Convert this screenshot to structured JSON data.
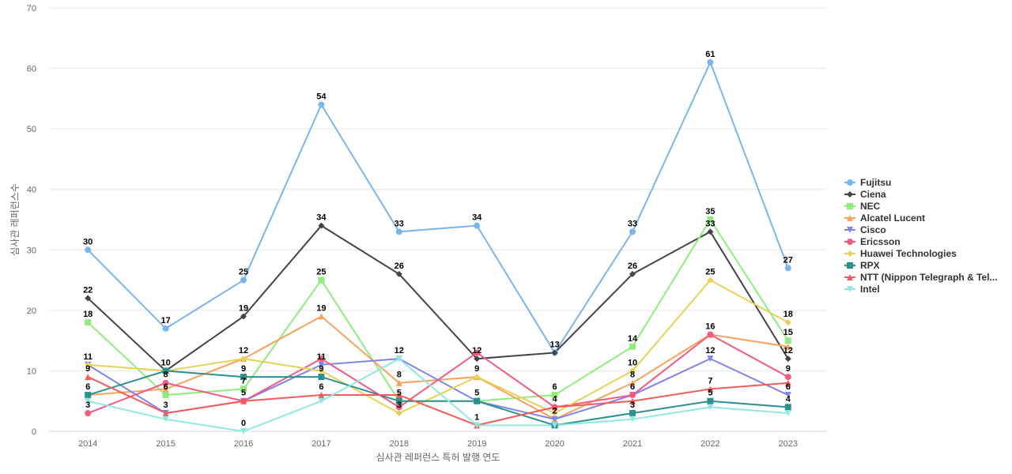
{
  "chart_data": {
    "type": "line",
    "title": "",
    "xlabel": "심사관 레퍼런스 특허 발행 연도",
    "ylabel": "심사관 레퍼런스수",
    "x": [
      "2014",
      "2015",
      "2016",
      "2017",
      "2018",
      "2019",
      "2020",
      "2021",
      "2022",
      "2023"
    ],
    "ylim": [
      0,
      70
    ],
    "yticks": [
      0,
      10,
      20,
      30,
      40,
      50,
      60,
      70
    ],
    "grid": true,
    "legend_position": "right",
    "series": [
      {
        "name": "Fujitsu",
        "color": "#7cb5ec",
        "marker": "circle",
        "values": [
          30,
          17,
          25,
          54,
          33,
          34,
          13,
          33,
          61,
          27
        ]
      },
      {
        "name": "Ciena",
        "color": "#434348",
        "marker": "diamond",
        "values": [
          22,
          10,
          19,
          34,
          26,
          12,
          13,
          26,
          33,
          12
        ]
      },
      {
        "name": "NEC",
        "color": "#90ed7d",
        "marker": "square",
        "values": [
          18,
          6,
          7,
          25,
          5,
          5,
          6,
          14,
          35,
          15
        ]
      },
      {
        "name": "Alcatel Lucent",
        "color": "#f7a35c",
        "marker": "triangle",
        "values": [
          6,
          7,
          12,
          19,
          8,
          9,
          2,
          8,
          16,
          14
        ]
      },
      {
        "name": "Cisco",
        "color": "#8085e9",
        "marker": "triangle-down",
        "values": [
          11,
          3,
          5,
          11,
          12,
          5,
          2,
          6,
          12,
          6
        ]
      },
      {
        "name": "Ericsson",
        "color": "#f15c80",
        "marker": "circle",
        "values": [
          3,
          8,
          5,
          12,
          4,
          13,
          4,
          6,
          16,
          9
        ]
      },
      {
        "name": "Huawei Technologies",
        "color": "#e4d354",
        "marker": "diamond",
        "values": [
          11,
          10,
          12,
          10,
          3,
          9,
          3,
          10,
          25,
          18
        ]
      },
      {
        "name": "RPX",
        "color": "#2b908f",
        "marker": "square",
        "values": [
          6,
          10,
          9,
          9,
          5,
          5,
          1,
          3,
          5,
          4
        ]
      },
      {
        "name": "NTT (Nippon Telegraph & Tel...",
        "color": "#f45b5b",
        "marker": "triangle",
        "values": [
          9,
          3,
          5,
          6,
          6,
          1,
          4,
          5,
          7,
          8
        ]
      },
      {
        "name": "Intel",
        "color": "#91e8e1",
        "marker": "triangle-down",
        "values": [
          5,
          2,
          0,
          5,
          12,
          1,
          1,
          2,
          4,
          3
        ]
      }
    ],
    "data_labels": [
      {
        "x": "2014",
        "value": 30
      },
      {
        "x": "2014",
        "value": 22
      },
      {
        "x": "2014",
        "value": 18
      },
      {
        "x": "2014",
        "value": 11
      },
      {
        "x": "2014",
        "value": 9
      },
      {
        "x": "2014",
        "value": 6
      },
      {
        "x": "2014",
        "value": 3
      },
      {
        "x": "2015",
        "value": 17
      },
      {
        "x": "2015",
        "value": 10
      },
      {
        "x": "2015",
        "value": 8
      },
      {
        "x": "2015",
        "value": 6
      },
      {
        "x": "2015",
        "value": 3
      },
      {
        "x": "2016",
        "value": 25
      },
      {
        "x": "2016",
        "value": 19
      },
      {
        "x": "2016",
        "value": 12
      },
      {
        "x": "2016",
        "value": 9
      },
      {
        "x": "2016",
        "value": 7
      },
      {
        "x": "2016",
        "value": 5
      },
      {
        "x": "2016",
        "value": 0
      },
      {
        "x": "2017",
        "value": 54
      },
      {
        "x": "2017",
        "value": 34
      },
      {
        "x": "2017",
        "value": 25
      },
      {
        "x": "2017",
        "value": 19
      },
      {
        "x": "2017",
        "value": 11
      },
      {
        "x": "2017",
        "value": 9
      },
      {
        "x": "2017",
        "value": 6
      },
      {
        "x": "2018",
        "value": 33
      },
      {
        "x": "2018",
        "value": 26
      },
      {
        "x": "2018",
        "value": 12
      },
      {
        "x": "2018",
        "value": 8
      },
      {
        "x": "2018",
        "value": 5
      },
      {
        "x": "2018",
        "value": 3
      },
      {
        "x": "2019",
        "value": 34
      },
      {
        "x": "2019",
        "value": 12
      },
      {
        "x": "2019",
        "value": 9
      },
      {
        "x": "2019",
        "value": 5
      },
      {
        "x": "2019",
        "value": 1
      },
      {
        "x": "2020",
        "value": 13
      },
      {
        "x": "2020",
        "value": 6
      },
      {
        "x": "2020",
        "value": 4
      },
      {
        "x": "2020",
        "value": 2
      },
      {
        "x": "2021",
        "value": 33
      },
      {
        "x": "2021",
        "value": 26
      },
      {
        "x": "2021",
        "value": 14
      },
      {
        "x": "2021",
        "value": 10
      },
      {
        "x": "2021",
        "value": 8
      },
      {
        "x": "2021",
        "value": 6
      },
      {
        "x": "2021",
        "value": 3
      },
      {
        "x": "2022",
        "value": 61
      },
      {
        "x": "2022",
        "value": 35
      },
      {
        "x": "2022",
        "value": 33
      },
      {
        "x": "2022",
        "value": 25
      },
      {
        "x": "2022",
        "value": 16
      },
      {
        "x": "2022",
        "value": 12
      },
      {
        "x": "2022",
        "value": 7
      },
      {
        "x": "2022",
        "value": 5
      },
      {
        "x": "2023",
        "value": 27
      },
      {
        "x": "2023",
        "value": 18
      },
      {
        "x": "2023",
        "value": 15
      },
      {
        "x": "2023",
        "value": 12
      },
      {
        "x": "2023",
        "value": 9
      },
      {
        "x": "2023",
        "value": 6
      },
      {
        "x": "2023",
        "value": 4
      }
    ]
  }
}
